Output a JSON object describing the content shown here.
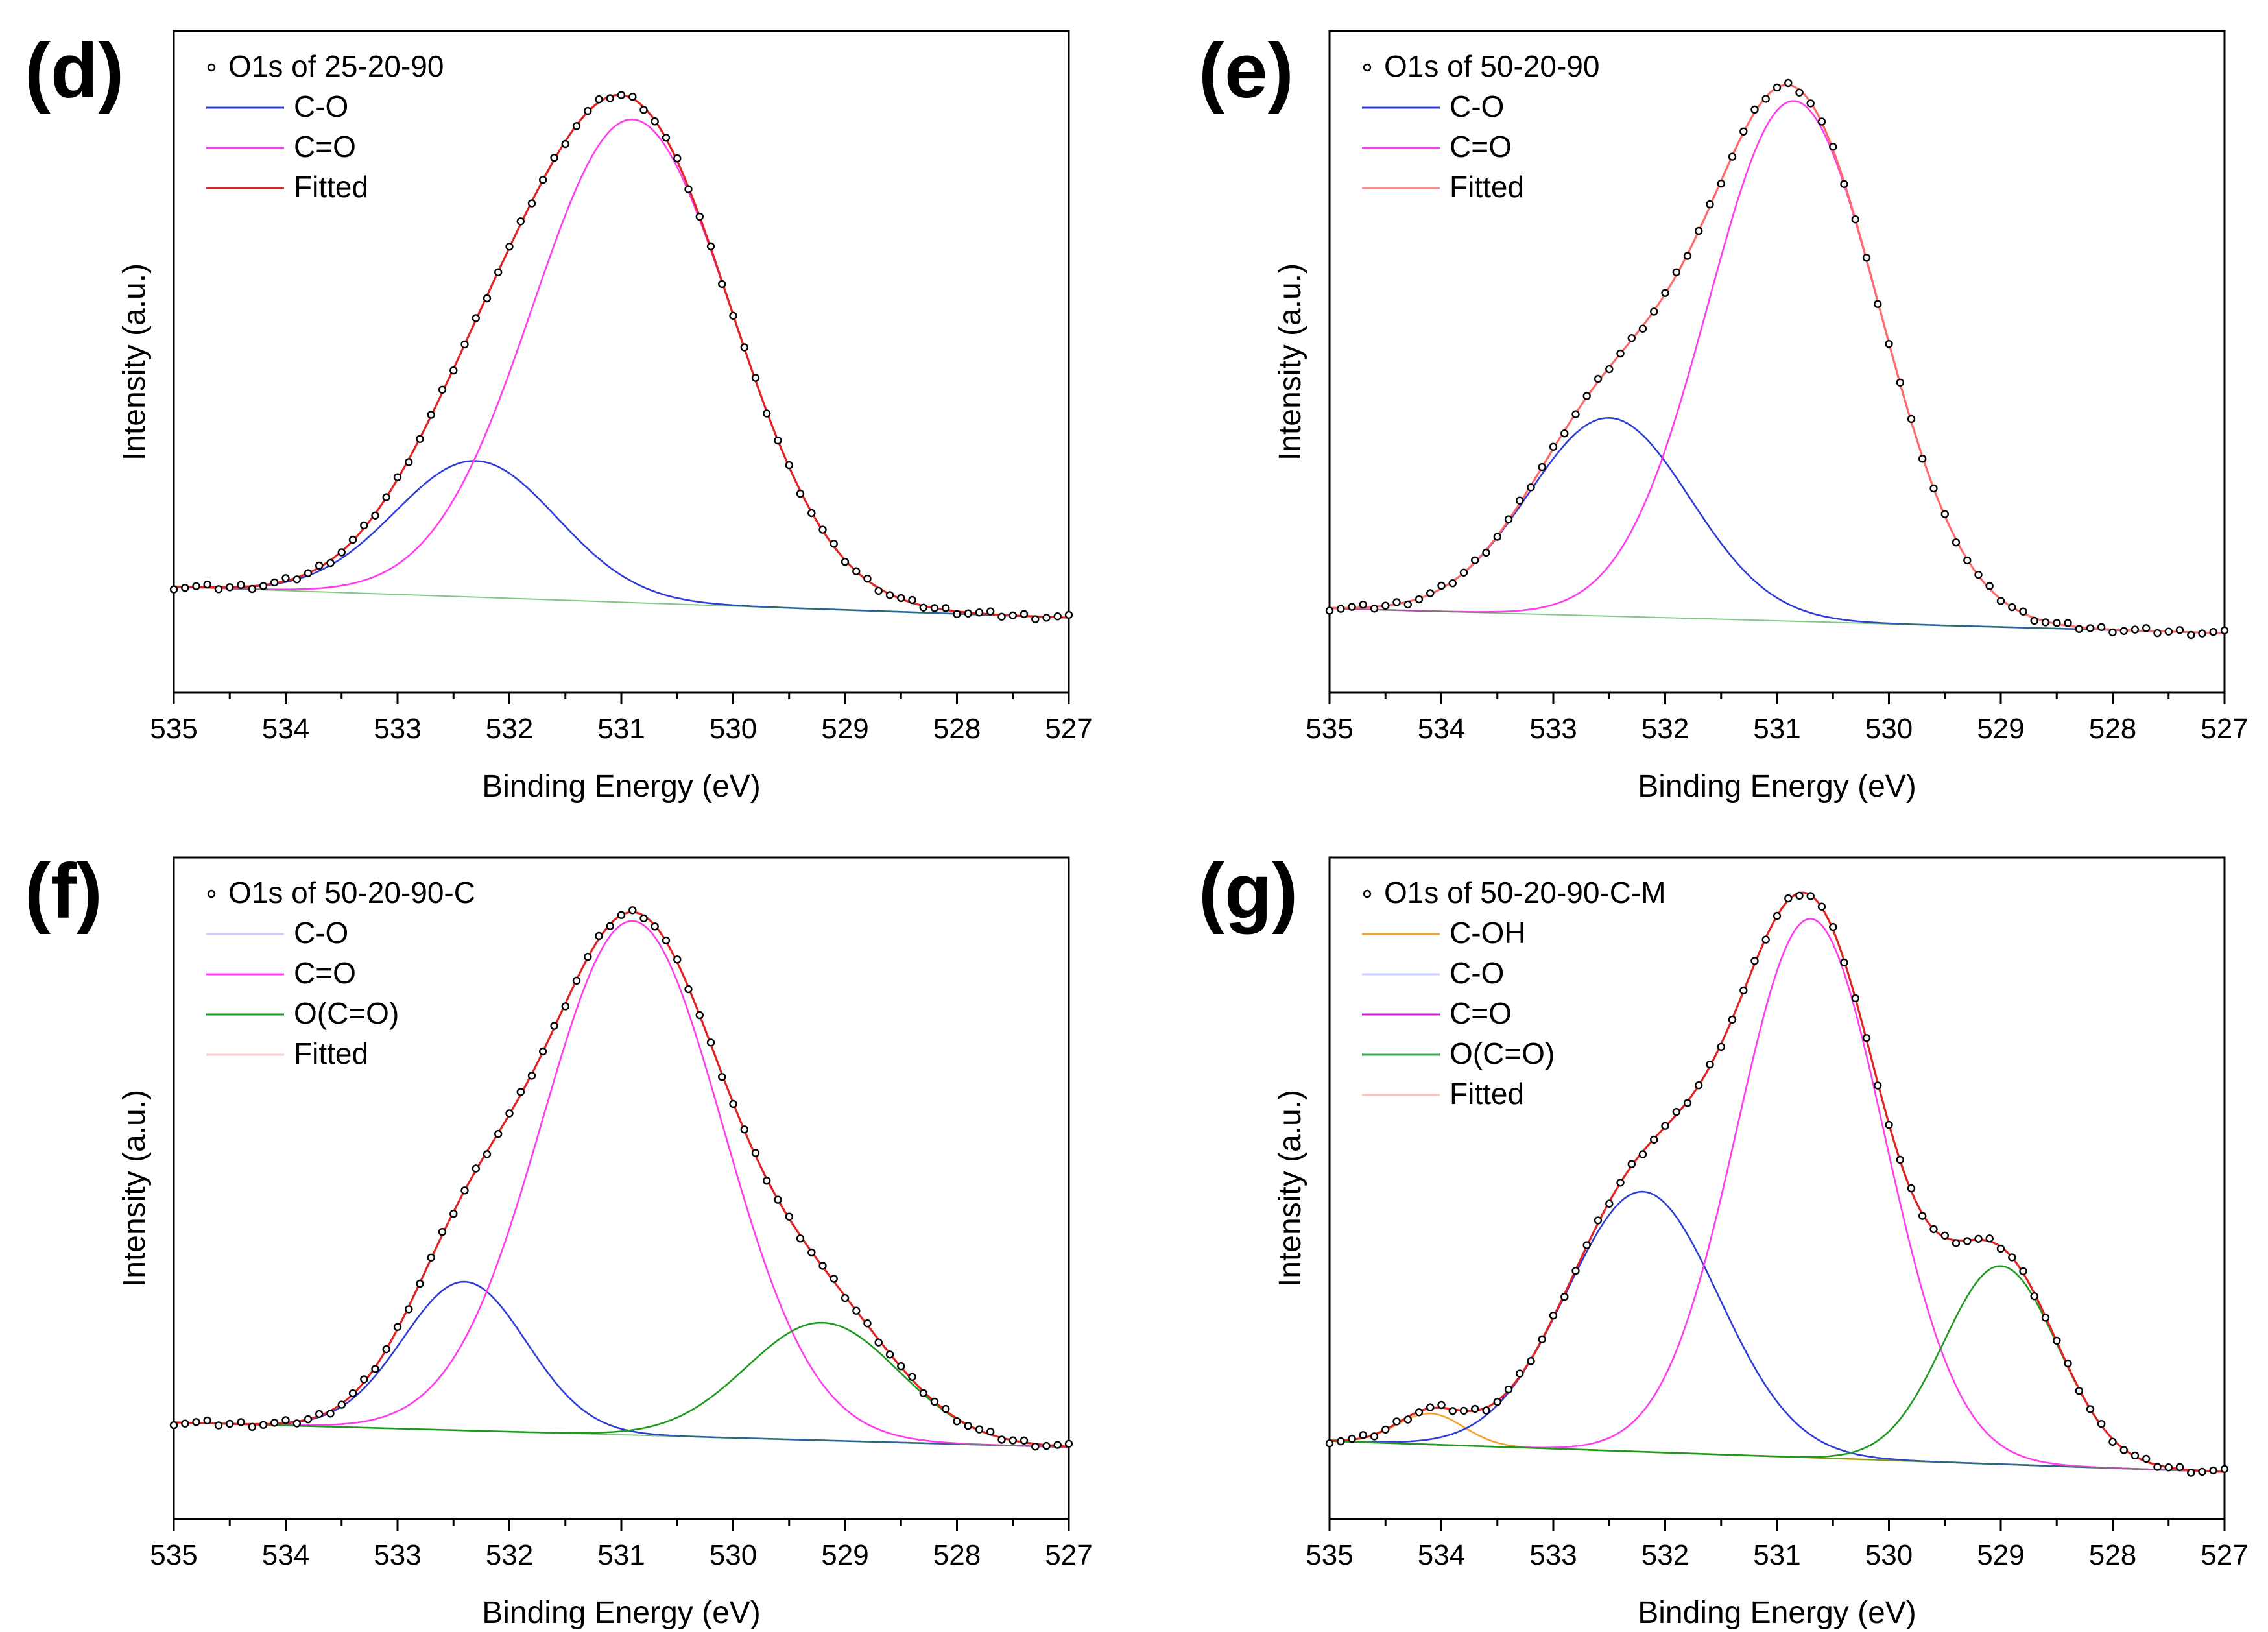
{
  "figure": {
    "panels_count": 4
  },
  "chart_data": [
    {
      "panel_letter": "(d)",
      "type": "line",
      "title": "O1s of 25-20-90",
      "xlabel": "Binding Energy (eV)",
      "ylabel": "Intensity (a.u.)",
      "xlim": [
        535,
        527
      ],
      "x_reversed": true,
      "x_ticks": [
        535,
        534,
        533,
        532,
        531,
        530,
        529,
        528,
        527
      ],
      "y_ticks": "none",
      "baseline": {
        "start": 0.145,
        "end": 0.095
      },
      "peak_y_max": 1.0,
      "legend": [
        {
          "label": "O1s of 25-20-90",
          "kind": "marker"
        },
        {
          "label": "C-O",
          "color": "#2f3dd6"
        },
        {
          "label": "C=O",
          "color": "#ff3cf0"
        },
        {
          "label": "Fitted",
          "color": "#e02424"
        }
      ],
      "data_series": {
        "name": "O1s of 25-20-90",
        "x_range": [
          535,
          527
        ],
        "points": 80
      },
      "series": [
        {
          "name": "C-O",
          "center": 532.3,
          "fwhm": 1.7,
          "height": 0.22,
          "color": "#2f3dd6"
        },
        {
          "name": "C=O",
          "center": 530.9,
          "fwhm": 2.1,
          "height": 0.78,
          "color": "#ff3cf0"
        }
      ],
      "fitted": {
        "name": "Fitted",
        "color": "#e02424"
      }
    },
    {
      "panel_letter": "(e)",
      "type": "line",
      "title": "O1s of 50-20-90",
      "xlabel": "Binding Energy (eV)",
      "ylabel": "Intensity (a.u.)",
      "xlim": [
        535,
        527
      ],
      "x_reversed": true,
      "x_ticks": [
        535,
        534,
        533,
        532,
        531,
        530,
        529,
        528,
        527
      ],
      "y_ticks": "none",
      "baseline": {
        "start": 0.11,
        "end": 0.07
      },
      "peak_y_max": 1.0,
      "legend": [
        {
          "label": "O1s of 50-20-90",
          "kind": "marker"
        },
        {
          "label": "C-O",
          "color": "#2f3dd6"
        },
        {
          "label": "C=O",
          "color": "#ff3cf0"
        },
        {
          "label": "Fitted",
          "color": "#ff8a8a"
        }
      ],
      "data_series": {
        "name": "O1s of 50-20-90",
        "x_range": [
          535,
          527
        ],
        "points": 80
      },
      "series": [
        {
          "name": "C-O",
          "center": 532.5,
          "fwhm": 1.7,
          "height": 0.32,
          "color": "#2f3dd6"
        },
        {
          "name": "C=O",
          "center": 530.85,
          "fwhm": 1.8,
          "height": 0.84,
          "color": "#ff3cf0"
        }
      ],
      "fitted": {
        "name": "Fitted",
        "color": "#ff6b6b"
      }
    },
    {
      "panel_letter": "(f)",
      "type": "line",
      "title": "O1s of 50-20-90-C",
      "xlabel": "Binding Energy (eV)",
      "ylabel": "Intensity (a.u.)",
      "xlim": [
        535,
        527
      ],
      "x_reversed": true,
      "x_ticks": [
        535,
        534,
        533,
        532,
        531,
        530,
        529,
        528,
        527
      ],
      "y_ticks": "none",
      "baseline": {
        "start": 0.13,
        "end": 0.09
      },
      "peak_y_max": 1.0,
      "legend": [
        {
          "label": "O1s of 50-20-90-C",
          "kind": "marker"
        },
        {
          "label": "C-O",
          "color": "#c9ccff"
        },
        {
          "label": "C=O",
          "color": "#ff3cf0"
        },
        {
          "label": "O(C=O)",
          "color": "#1e9a1e"
        },
        {
          "label": "Fitted",
          "color": "#f5d0d0"
        }
      ],
      "data_series": {
        "name": "O1s of 50-20-90-C",
        "x_range": [
          535,
          527
        ],
        "points": 80
      },
      "series": [
        {
          "name": "C-O",
          "center": 532.4,
          "fwhm": 1.3,
          "height": 0.24,
          "color": "#2f3dd6"
        },
        {
          "name": "C=O",
          "center": 530.9,
          "fwhm": 1.9,
          "height": 0.83,
          "color": "#ff3cf0"
        },
        {
          "name": "O(C=O)",
          "center": 529.2,
          "fwhm": 1.6,
          "height": 0.19,
          "color": "#1e9a1e"
        }
      ],
      "fitted": {
        "name": "Fitted",
        "color": "#e02424"
      }
    },
    {
      "panel_letter": "(g)",
      "type": "line",
      "title": "O1s of 50-20-90-C-M",
      "xlabel": "Binding Energy (eV)",
      "ylabel": "Intensity (a.u.)",
      "xlim": [
        535,
        527
      ],
      "x_reversed": true,
      "x_ticks": [
        535,
        534,
        533,
        532,
        531,
        530,
        529,
        528,
        527
      ],
      "y_ticks": "none",
      "baseline": {
        "start": 0.1,
        "end": 0.05
      },
      "peak_y_max": 1.0,
      "legend": [
        {
          "label": "O1s of 50-20-90-C-M",
          "kind": "marker"
        },
        {
          "label": "C-OH",
          "color": "#f5a030"
        },
        {
          "label": "C-O",
          "color": "#c9ccff"
        },
        {
          "label": "C=O",
          "color": "#cc22cc"
        },
        {
          "label": "O(C=O)",
          "color": "#33aa55"
        },
        {
          "label": "Fitted",
          "color": "#ffc0c0"
        }
      ],
      "data_series": {
        "name": "O1s of 50-20-90-C-M",
        "x_range": [
          535,
          527
        ],
        "points": 80
      },
      "series": [
        {
          "name": "C-OH",
          "center": 534.1,
          "fwhm": 0.7,
          "height": 0.05,
          "color": "#f5a030"
        },
        {
          "name": "C-O",
          "center": 532.2,
          "fwhm": 1.6,
          "height": 0.42,
          "color": "#2f3dd6"
        },
        {
          "name": "C=O",
          "center": 530.7,
          "fwhm": 1.55,
          "height": 0.87,
          "color": "#ff3cf0"
        },
        {
          "name": "O(C=O)",
          "center": 529.0,
          "fwhm": 1.2,
          "height": 0.32,
          "color": "#1e9a1e"
        }
      ],
      "fitted": {
        "name": "Fitted",
        "color": "#e02424"
      }
    }
  ]
}
